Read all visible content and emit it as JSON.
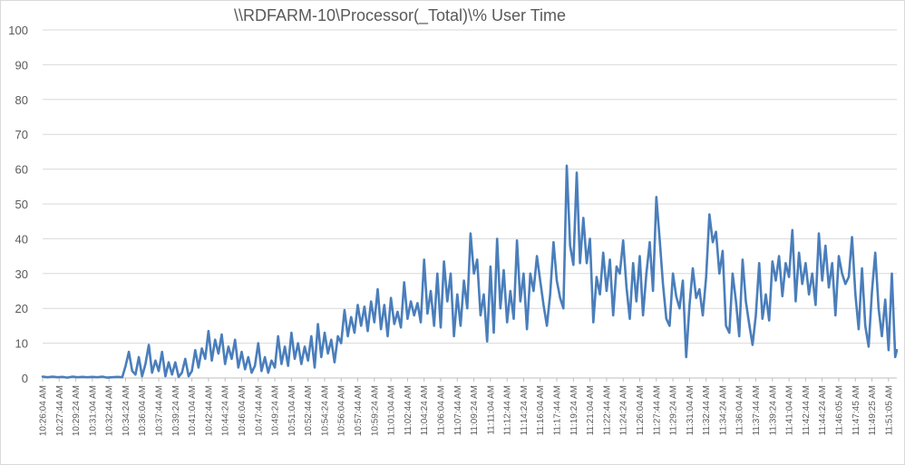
{
  "chart_data": {
    "type": "line",
    "title": "\\\\RDFARM-10\\Processor(_Total)\\% User Time",
    "xlabel": "",
    "ylabel": "",
    "ylim": [
      0,
      100
    ],
    "yticks": [
      0,
      10,
      20,
      30,
      40,
      50,
      60,
      70,
      80,
      90,
      100
    ],
    "grid": true,
    "legend": "none",
    "line_color": "#4a7ebb",
    "x_tick_labels": [
      "10:26:04 AM",
      "10:27:44 AM",
      "10:29:24 AM",
      "10:31:04 AM",
      "10:32:44 AM",
      "10:34:24 AM",
      "10:36:04 AM",
      "10:37:44 AM",
      "10:39:24 AM",
      "10:41:04 AM",
      "10:42:44 AM",
      "10:44:24 AM",
      "10:46:04 AM",
      "10:47:44 AM",
      "10:49:24 AM",
      "10:51:04 AM",
      "10:52:44 AM",
      "10:54:24 AM",
      "10:56:04 AM",
      "10:57:44 AM",
      "10:59:24 AM",
      "11:01:04 AM",
      "11:02:44 AM",
      "11:04:24 AM",
      "11:06:04 AM",
      "11:07:44 AM",
      "11:09:24 AM",
      "11:11:04 AM",
      "11:12:44 AM",
      "11:14:24 AM",
      "11:16:04 AM",
      "11:17:44 AM",
      "11:19:24 AM",
      "11:21:04 AM",
      "11:22:44 AM",
      "11:24:24 AM",
      "11:26:04 AM",
      "11:27:44 AM",
      "11:29:24 AM",
      "11:31:04 AM",
      "11:32:44 AM",
      "11:34:24 AM",
      "11:36:04 AM",
      "11:37:44 AM",
      "11:39:24 AM",
      "11:41:04 AM",
      "11:42:44 AM",
      "11:44:24 AM",
      "11:46:05 AM",
      "11:47:45 AM",
      "11:49:25 AM",
      "11:51:05 AM"
    ],
    "series": [
      {
        "name": "\\\\RDFARM-10\\Processor(_Total)\\% User Time",
        "x_range": [
          0,
          51.5
        ],
        "points": [
          [
            0,
            0.4
          ],
          [
            0.3,
            0.2
          ],
          [
            0.6,
            0.4
          ],
          [
            0.9,
            0.2
          ],
          [
            1.2,
            0.3
          ],
          [
            1.5,
            0.1
          ],
          [
            1.8,
            0.4
          ],
          [
            2.1,
            0.2
          ],
          [
            2.4,
            0.3
          ],
          [
            2.7,
            0.2
          ],
          [
            3.0,
            0.3
          ],
          [
            3.3,
            0.2
          ],
          [
            3.6,
            0.4
          ],
          [
            3.9,
            0.1
          ],
          [
            4.2,
            0.2
          ],
          [
            4.5,
            0.3
          ],
          [
            4.8,
            0.2
          ],
          [
            5.0,
            3.5
          ],
          [
            5.2,
            7.5
          ],
          [
            5.4,
            2.0
          ],
          [
            5.6,
            1.0
          ],
          [
            5.8,
            6.0
          ],
          [
            6.0,
            0.5
          ],
          [
            6.2,
            4.0
          ],
          [
            6.4,
            9.5
          ],
          [
            6.6,
            1.5
          ],
          [
            6.8,
            5.0
          ],
          [
            7.0,
            2.0
          ],
          [
            7.2,
            7.5
          ],
          [
            7.4,
            0.5
          ],
          [
            7.6,
            4.5
          ],
          [
            7.8,
            1.0
          ],
          [
            8.0,
            4.5
          ],
          [
            8.2,
            0.3
          ],
          [
            8.4,
            1.5
          ],
          [
            8.6,
            5.5
          ],
          [
            8.8,
            0.5
          ],
          [
            9.0,
            2.0
          ],
          [
            9.2,
            8.0
          ],
          [
            9.4,
            3.0
          ],
          [
            9.6,
            8.5
          ],
          [
            9.8,
            5.5
          ],
          [
            10.0,
            13.5
          ],
          [
            10.2,
            5.0
          ],
          [
            10.4,
            11.0
          ],
          [
            10.6,
            7.0
          ],
          [
            10.8,
            12.5
          ],
          [
            11.0,
            4.0
          ],
          [
            11.2,
            9.0
          ],
          [
            11.4,
            5.5
          ],
          [
            11.6,
            11.0
          ],
          [
            11.8,
            3.0
          ],
          [
            12.0,
            7.5
          ],
          [
            12.2,
            2.5
          ],
          [
            12.4,
            6.0
          ],
          [
            12.6,
            1.5
          ],
          [
            12.8,
            3.5
          ],
          [
            13.0,
            10.0
          ],
          [
            13.2,
            2.0
          ],
          [
            13.4,
            6.0
          ],
          [
            13.6,
            1.5
          ],
          [
            13.8,
            5.0
          ],
          [
            14.0,
            3.0
          ],
          [
            14.2,
            12.0
          ],
          [
            14.4,
            4.0
          ],
          [
            14.6,
            9.0
          ],
          [
            14.8,
            3.5
          ],
          [
            15.0,
            13.0
          ],
          [
            15.2,
            5.5
          ],
          [
            15.4,
            10.0
          ],
          [
            15.6,
            4.0
          ],
          [
            15.8,
            9.0
          ],
          [
            16.0,
            5.0
          ],
          [
            16.2,
            12.0
          ],
          [
            16.4,
            3.0
          ],
          [
            16.6,
            15.5
          ],
          [
            16.8,
            6.0
          ],
          [
            17.0,
            13.0
          ],
          [
            17.2,
            7.0
          ],
          [
            17.4,
            11.0
          ],
          [
            17.6,
            4.5
          ],
          [
            17.8,
            12.0
          ],
          [
            18.0,
            10.0
          ],
          [
            18.2,
            19.5
          ],
          [
            18.4,
            12.0
          ],
          [
            18.6,
            17.5
          ],
          [
            18.8,
            13.0
          ],
          [
            19.0,
            21.0
          ],
          [
            19.2,
            15.0
          ],
          [
            19.4,
            20.5
          ],
          [
            19.6,
            13.5
          ],
          [
            19.8,
            22.0
          ],
          [
            20.0,
            16.0
          ],
          [
            20.2,
            25.5
          ],
          [
            20.4,
            14.0
          ],
          [
            20.6,
            21.0
          ],
          [
            20.8,
            12.0
          ],
          [
            21.0,
            23.0
          ],
          [
            21.2,
            15.5
          ],
          [
            21.4,
            19.0
          ],
          [
            21.6,
            14.5
          ],
          [
            21.8,
            27.5
          ],
          [
            22.0,
            17.0
          ],
          [
            22.2,
            22.0
          ],
          [
            22.4,
            18.0
          ],
          [
            22.6,
            21.5
          ],
          [
            22.8,
            16.0
          ],
          [
            23.0,
            34.0
          ],
          [
            23.2,
            18.5
          ],
          [
            23.4,
            25.0
          ],
          [
            23.6,
            15.0
          ],
          [
            23.8,
            30.0
          ],
          [
            24.0,
            14.5
          ],
          [
            24.2,
            33.5
          ],
          [
            24.4,
            22.0
          ],
          [
            24.6,
            30.0
          ],
          [
            24.8,
            12.0
          ],
          [
            25.0,
            24.0
          ],
          [
            25.2,
            15.0
          ],
          [
            25.4,
            28.0
          ],
          [
            25.6,
            20.0
          ],
          [
            25.8,
            41.5
          ],
          [
            26.0,
            30.0
          ],
          [
            26.2,
            34.0
          ],
          [
            26.4,
            18.0
          ],
          [
            26.6,
            24.0
          ],
          [
            26.8,
            10.5
          ],
          [
            27.0,
            32.0
          ],
          [
            27.2,
            13.0
          ],
          [
            27.4,
            40.0
          ],
          [
            27.6,
            20.0
          ],
          [
            27.8,
            31.0
          ],
          [
            28.0,
            16.0
          ],
          [
            28.2,
            25.0
          ],
          [
            28.4,
            17.0
          ],
          [
            28.6,
            39.5
          ],
          [
            28.8,
            22.0
          ],
          [
            29.0,
            30.0
          ],
          [
            29.2,
            14.0
          ],
          [
            29.4,
            30.0
          ],
          [
            29.6,
            25.0
          ],
          [
            29.8,
            35.0
          ],
          [
            30.0,
            28.0
          ],
          [
            30.2,
            21.0
          ],
          [
            30.4,
            15.0
          ],
          [
            30.6,
            24.0
          ],
          [
            30.8,
            39.0
          ],
          [
            31.0,
            28.0
          ],
          [
            31.2,
            23.0
          ],
          [
            31.4,
            20.0
          ],
          [
            31.6,
            61.0
          ],
          [
            31.8,
            38.0
          ],
          [
            32.0,
            32.5
          ],
          [
            32.2,
            59.0
          ],
          [
            32.4,
            33.0
          ],
          [
            32.6,
            46.0
          ],
          [
            32.8,
            33.0
          ],
          [
            33.0,
            40.0
          ],
          [
            33.2,
            16.0
          ],
          [
            33.4,
            29.0
          ],
          [
            33.6,
            24.0
          ],
          [
            33.8,
            36.0
          ],
          [
            34.0,
            25.0
          ],
          [
            34.2,
            34.0
          ],
          [
            34.4,
            18.0
          ],
          [
            34.6,
            32.0
          ],
          [
            34.8,
            30.0
          ],
          [
            35.0,
            39.5
          ],
          [
            35.2,
            26.0
          ],
          [
            35.4,
            17.0
          ],
          [
            35.6,
            33.0
          ],
          [
            35.8,
            22.0
          ],
          [
            36.0,
            35.0
          ],
          [
            36.2,
            18.0
          ],
          [
            36.4,
            30.0
          ],
          [
            36.6,
            39.0
          ],
          [
            36.8,
            25.0
          ],
          [
            37.0,
            52.0
          ],
          [
            37.2,
            40.0
          ],
          [
            37.4,
            27.0
          ],
          [
            37.6,
            17.0
          ],
          [
            37.8,
            15.0
          ],
          [
            38.0,
            30.0
          ],
          [
            38.2,
            23.5
          ],
          [
            38.4,
            20.0
          ],
          [
            38.6,
            28.0
          ],
          [
            38.8,
            6.0
          ],
          [
            39.0,
            21.0
          ],
          [
            39.2,
            31.5
          ],
          [
            39.4,
            23.0
          ],
          [
            39.6,
            25.5
          ],
          [
            39.8,
            18.0
          ],
          [
            40.0,
            29.0
          ],
          [
            40.2,
            47.0
          ],
          [
            40.4,
            39.0
          ],
          [
            40.6,
            42.0
          ],
          [
            40.8,
            30.0
          ],
          [
            41.0,
            36.5
          ],
          [
            41.2,
            15.0
          ],
          [
            41.4,
            13.0
          ],
          [
            41.6,
            30.0
          ],
          [
            41.8,
            22.0
          ],
          [
            42.0,
            12.0
          ],
          [
            42.2,
            34.0
          ],
          [
            42.4,
            22.0
          ],
          [
            42.6,
            15.5
          ],
          [
            42.8,
            9.5
          ],
          [
            43.0,
            18.0
          ],
          [
            43.2,
            33.0
          ],
          [
            43.4,
            17.0
          ],
          [
            43.6,
            24.0
          ],
          [
            43.8,
            16.5
          ],
          [
            44.0,
            33.5
          ],
          [
            44.2,
            28.0
          ],
          [
            44.4,
            35.0
          ],
          [
            44.6,
            23.5
          ],
          [
            44.8,
            33.0
          ],
          [
            45.0,
            29.0
          ],
          [
            45.2,
            42.5
          ],
          [
            45.4,
            22.0
          ],
          [
            45.6,
            36.0
          ],
          [
            45.8,
            27.0
          ],
          [
            46.0,
            33.0
          ],
          [
            46.2,
            24.0
          ],
          [
            46.4,
            30.0
          ],
          [
            46.6,
            21.0
          ],
          [
            46.8,
            41.5
          ],
          [
            47.0,
            28.0
          ],
          [
            47.2,
            38.0
          ],
          [
            47.4,
            26.0
          ],
          [
            47.6,
            33.0
          ],
          [
            47.8,
            18.0
          ],
          [
            48.0,
            35.0
          ],
          [
            48.2,
            30.0
          ],
          [
            48.4,
            27.0
          ],
          [
            48.6,
            29.0
          ],
          [
            48.8,
            40.5
          ],
          [
            49.0,
            24.0
          ],
          [
            49.2,
            14.0
          ],
          [
            49.4,
            31.5
          ],
          [
            49.6,
            15.0
          ],
          [
            49.8,
            9.0
          ],
          [
            50.0,
            25.0
          ],
          [
            50.2,
            36.0
          ],
          [
            50.4,
            20.0
          ],
          [
            50.6,
            12.0
          ],
          [
            50.8,
            22.5
          ],
          [
            51.0,
            8.0
          ],
          [
            51.2,
            30.0
          ],
          [
            51.4,
            6.0
          ],
          [
            51.5,
            8.0
          ]
        ]
      }
    ]
  }
}
